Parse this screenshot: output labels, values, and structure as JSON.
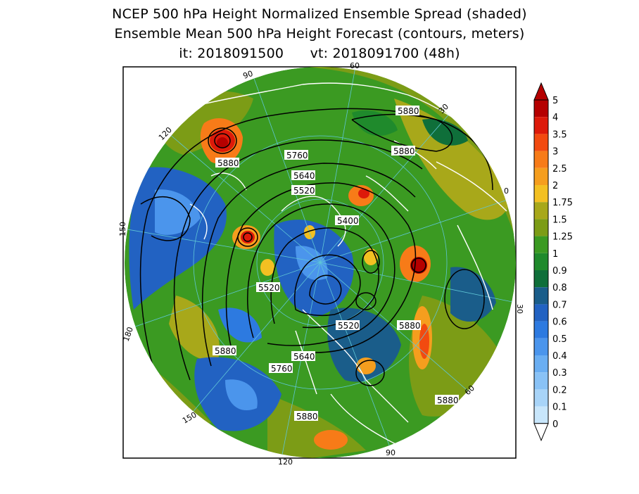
{
  "title": {
    "line1": "NCEP 500 hPa Height Normalized Ensemble Spread (shaded)",
    "line2": "Ensemble Mean 500 hPa Height Forecast (contours, meters)",
    "line3": "it: 2018091500      vt: 2018091700 (48h)"
  },
  "map": {
    "projection": "north-polar-stereographic",
    "shading_variable": "normalized ensemble spread",
    "contour_variable": "500 hPa height (m)",
    "contour_labels": [
      "5880",
      "5880",
      "5880",
      "5760",
      "5640",
      "5520",
      "5400",
      "5520",
      "5520",
      "5880",
      "5640",
      "5760",
      "5880",
      "5880",
      "5880"
    ],
    "longitude_labels": [
      "60",
      "30",
      "0",
      "30",
      "60",
      "90",
      "120",
      "150",
      "180",
      "150",
      "120",
      "90"
    ]
  },
  "colorbar": {
    "labels": [
      "5",
      "4",
      "3.5",
      "3",
      "2.5",
      "2",
      "1.75",
      "1.5",
      "1.25",
      "1",
      "0.9",
      "0.8",
      "0.7",
      "0.6",
      "0.5",
      "0.4",
      "0.3",
      "0.2",
      "0.1",
      "0"
    ],
    "colors": [
      "#b50000",
      "#dd1a0a",
      "#f24a10",
      "#f77b18",
      "#f59e1e",
      "#f3c022",
      "#a8a81a",
      "#7c9c16",
      "#3b9a22",
      "#1f8a2c",
      "#0f6f3a",
      "#1a5d8a",
      "#2262c2",
      "#2d7ae0",
      "#4b95ec",
      "#6aaef2",
      "#89c2f6",
      "#a8d4f8",
      "#c8e6fb"
    ],
    "over_color": "#b50000",
    "under_color": "#ffffff"
  }
}
